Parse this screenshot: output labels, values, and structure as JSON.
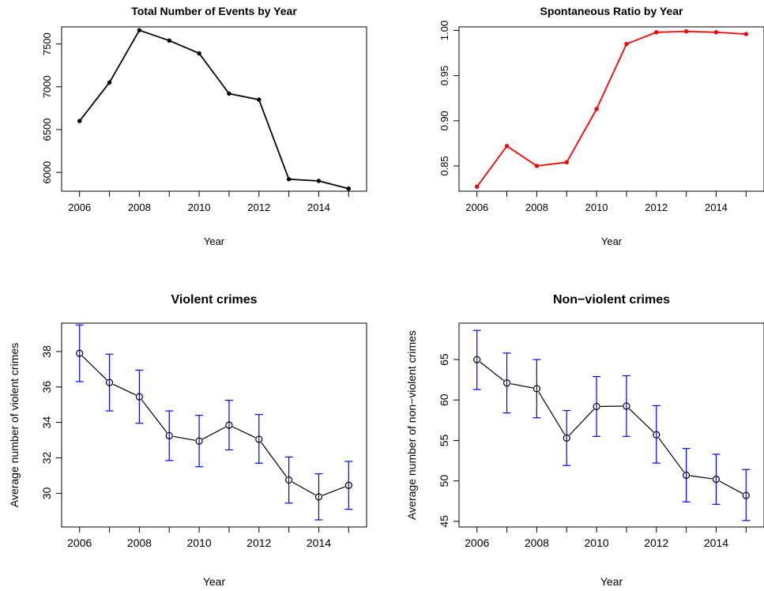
{
  "chart_data": [
    {
      "id": "p1",
      "type": "line",
      "title": "Total Number of Events by Year",
      "xlabel": "Year",
      "ylabel": "",
      "x": [
        2006,
        2007,
        2008,
        2009,
        2010,
        2011,
        2012,
        2013,
        2014,
        2015
      ],
      "series": [
        {
          "values": [
            6600,
            7050,
            7660,
            7540,
            7390,
            6920,
            6850,
            5920,
            5900,
            5810
          ]
        }
      ],
      "xlim": [
        2005.4,
        2015.6
      ],
      "ylim": [
        5780,
        7700
      ],
      "xticks": [
        "2006",
        "2008",
        "2010",
        "2012",
        "2014"
      ],
      "xtick_values": [
        2006,
        2008,
        2010,
        2012,
        2014
      ],
      "yticks": [
        "6000",
        "6500",
        "7000",
        "7500"
      ],
      "ytick_values": [
        6000,
        6500,
        7000,
        7500
      ],
      "color": "#000000",
      "marker": "filled-dot",
      "grid": false
    },
    {
      "id": "p2",
      "type": "line",
      "title": "Spontaneous Ratio by Year",
      "xlabel": "Year",
      "ylabel": "",
      "x": [
        2006,
        2007,
        2008,
        2009,
        2010,
        2011,
        2012,
        2013,
        2014,
        2015
      ],
      "series": [
        {
          "values": [
            0.827,
            0.872,
            0.85,
            0.854,
            0.913,
            0.985,
            0.998,
            0.999,
            0.998,
            0.996
          ]
        }
      ],
      "xlim": [
        2005.4,
        2015.6
      ],
      "ylim": [
        0.822,
        1.004
      ],
      "xticks": [
        "2006",
        "2008",
        "2010",
        "2012",
        "2014"
      ],
      "xtick_values": [
        2006,
        2008,
        2010,
        2012,
        2014
      ],
      "yticks": [
        "0.85",
        "0.90",
        "0.95",
        "1.00"
      ],
      "ytick_values": [
        0.85,
        0.9,
        0.95,
        1.0
      ],
      "color": "#ff0000",
      "marker": "filled-dot",
      "grid": false
    },
    {
      "id": "p3",
      "type": "line",
      "title": "Violent crimes",
      "xlabel": "Year",
      "ylabel": "Average number of violent crimes",
      "x": [
        2006,
        2007,
        2008,
        2009,
        2010,
        2011,
        2012,
        2013,
        2014,
        2015
      ],
      "series": [
        {
          "values": [
            37.9,
            36.25,
            35.45,
            33.25,
            32.95,
            33.85,
            33.05,
            30.75,
            29.8,
            30.45
          ],
          "lower": [
            36.3,
            34.65,
            33.95,
            31.85,
            31.5,
            32.45,
            31.7,
            29.45,
            28.5,
            29.1
          ],
          "upper": [
            39.5,
            37.85,
            36.95,
            34.65,
            34.4,
            35.25,
            34.45,
            32.05,
            31.1,
            31.8
          ]
        }
      ],
      "xlim": [
        2005.4,
        2015.6
      ],
      "ylim": [
        28.1,
        39.6
      ],
      "xticks": [
        "2006",
        "2008",
        "2010",
        "2012",
        "2014"
      ],
      "xtick_values": [
        2006,
        2008,
        2010,
        2012,
        2014
      ],
      "yticks": [
        "30",
        "32",
        "34",
        "36",
        "38"
      ],
      "ytick_values": [
        30,
        32,
        34,
        36,
        38
      ],
      "color": "#000000",
      "errorbar_color": "#0000ff",
      "marker": "open-circle",
      "grid": false
    },
    {
      "id": "p4",
      "type": "line",
      "title": "Non−violent crimes",
      "xlabel": "Year",
      "ylabel": "Average number of non−violent crimes",
      "x": [
        2006,
        2007,
        2008,
        2009,
        2010,
        2011,
        2012,
        2013,
        2014,
        2015
      ],
      "series": [
        {
          "values": [
            65.0,
            62.1,
            61.4,
            55.3,
            59.2,
            59.25,
            55.7,
            50.7,
            50.2,
            48.2
          ],
          "lower": [
            61.3,
            58.4,
            57.8,
            51.9,
            55.5,
            55.5,
            52.2,
            47.4,
            47.1,
            45.1
          ],
          "upper": [
            68.6,
            65.8,
            65.0,
            58.7,
            62.9,
            63.0,
            59.3,
            54.0,
            53.3,
            51.4
          ]
        }
      ],
      "xlim": [
        2005.4,
        2015.6
      ],
      "ylim": [
        44.3,
        69.5
      ],
      "xticks": [
        "2006",
        "2008",
        "2010",
        "2012",
        "2014"
      ],
      "xtick_values": [
        2006,
        2008,
        2010,
        2012,
        2014
      ],
      "yticks": [
        "45",
        "50",
        "55",
        "60",
        "65"
      ],
      "ytick_values": [
        45,
        50,
        55,
        60,
        65
      ],
      "color": "#000000",
      "errorbar_color": "#0000ff",
      "marker": "open-circle",
      "grid": false
    }
  ]
}
